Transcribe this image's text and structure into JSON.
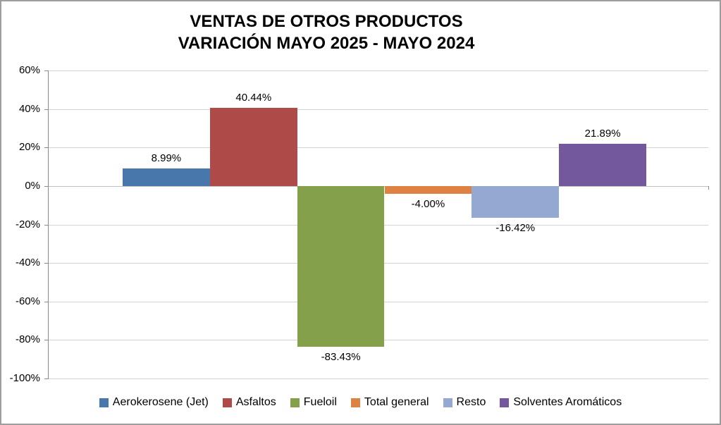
{
  "title": {
    "line1": "VENTAS DE OTROS PRODUCTOS",
    "line2": "VARIACIÓN MAYO 2025 - MAYO 2024"
  },
  "chart_data": {
    "type": "bar",
    "title": "VENTAS DE OTROS PRODUCTOS",
    "subtitle": "VARIACIÓN MAYO 2025 - MAYO 2024",
    "categories": [
      "Aerokerosene (Jet)",
      "Asfaltos",
      "Fueloil",
      "Total general",
      "Resto",
      "Solventes Aromáticos"
    ],
    "values": [
      8.99,
      40.44,
      -83.43,
      -4.0,
      -16.42,
      21.89
    ],
    "labels": [
      "8.99%",
      "40.44%",
      "-83.43%",
      "-4.00%",
      "-16.42%",
      "21.89%"
    ],
    "colors": [
      "#4777AB",
      "#AE4A47",
      "#85A04A",
      "#DE8243",
      "#95A8D1",
      "#74589D"
    ],
    "xlabel": "",
    "ylabel": "",
    "ylim": [
      -100,
      60
    ],
    "yticks": [
      {
        "value": 60,
        "label": "60%"
      },
      {
        "value": 40,
        "label": "40%"
      },
      {
        "value": 20,
        "label": "20%"
      },
      {
        "value": 0,
        "label": "0%"
      },
      {
        "value": -20,
        "label": "-20%"
      },
      {
        "value": -40,
        "label": "-40%"
      },
      {
        "value": -60,
        "label": "-60%"
      },
      {
        "value": -80,
        "label": "-80%"
      },
      {
        "value": -100,
        "label": "-100%"
      }
    ],
    "grid": true,
    "legend_position": "bottom",
    "style": {
      "gridline": "#D3D3D3",
      "zero_line": "#C0C0C0",
      "axis": "#8A8A8A",
      "border": "#9D9D9D",
      "text": "#000000",
      "background": "#FFFFFF"
    }
  }
}
